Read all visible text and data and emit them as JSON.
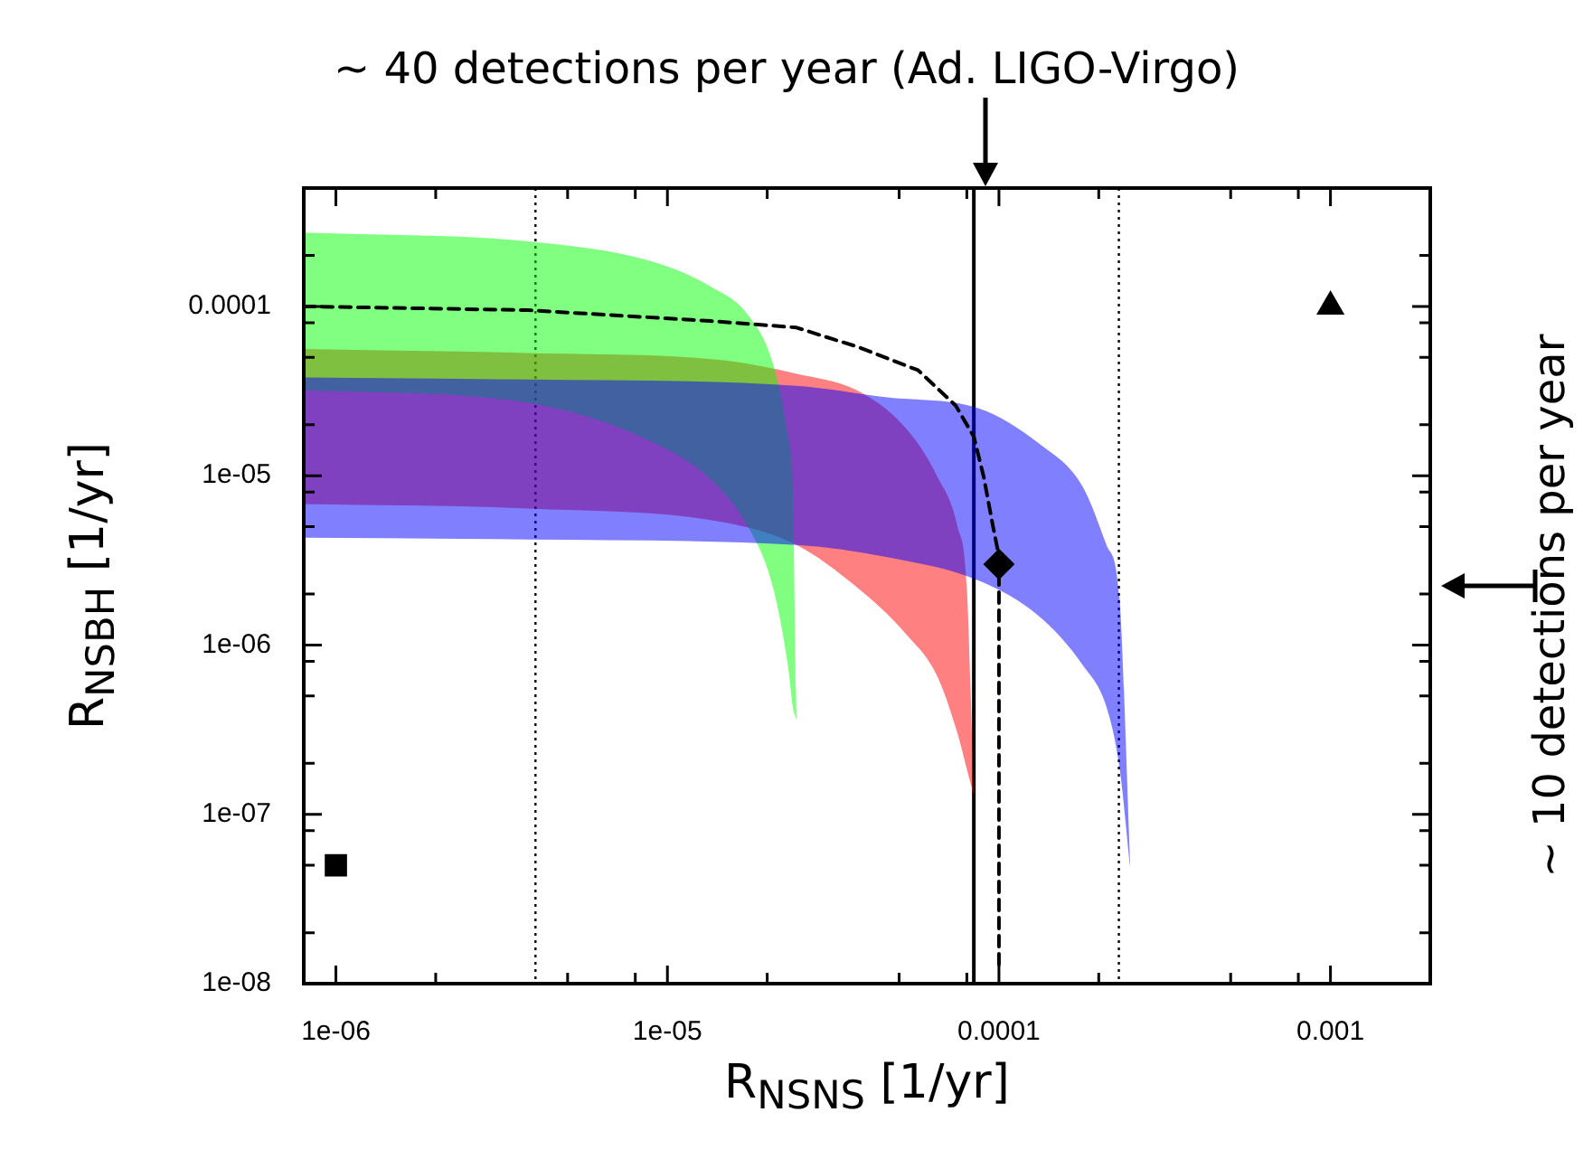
{
  "chart_data": {
    "type": "line",
    "xlabel": "R$_{NSNS}$ [1/yr]",
    "ylabel": "R$_{NSBH}$ [1/yr]",
    "log": "xy",
    "xlim": [
      8e-07,
      0.002
    ],
    "ylim": [
      1e-08,
      0.0005
    ],
    "xticks": [
      {
        "value": 1e-06,
        "label": "1e-06"
      },
      {
        "value": 2e-06,
        "label": null
      },
      {
        "value": 5e-06,
        "label": null
      },
      {
        "value": 8e-06,
        "label": null
      },
      {
        "value": 1e-05,
        "label": "1e-05"
      },
      {
        "value": 2e-05,
        "label": null
      },
      {
        "value": 5e-05,
        "label": null
      },
      {
        "value": 8e-05,
        "label": null
      },
      0.0001,
      {
        "value": 0.0002,
        "label": null
      },
      {
        "value": 0.0005,
        "label": null
      },
      {
        "value": 0.0008,
        "label": null
      },
      0.001
    ],
    "yticks": [
      {
        "value": 1e-08,
        "label": "1e-08"
      },
      {
        "value": 2e-08,
        "label": null
      },
      {
        "value": 5e-08,
        "label": null
      },
      {
        "value": 8e-08,
        "label": null
      },
      {
        "value": 1e-07,
        "label": "1e-07"
      },
      {
        "value": 2e-07,
        "label": null
      },
      {
        "value": 5e-07,
        "label": null
      },
      {
        "value": 8e-07,
        "label": null
      },
      {
        "value": 1e-06,
        "label": "1e-06"
      },
      {
        "value": 2e-06,
        "label": null
      },
      {
        "value": 5e-06,
        "label": null
      },
      {
        "value": 8e-06,
        "label": null
      },
      {
        "value": 1e-05,
        "label": "1e-05"
      },
      {
        "value": 2e-05,
        "label": null
      },
      {
        "value": 5e-05,
        "label": null
      },
      {
        "value": 8e-05,
        "label": null
      },
      0.0001,
      {
        "value": 0.0002,
        "label": null
      }
    ],
    "series": [
      {
        "color": "#ff8080",
        "x": [
          8e-07,
          3.8e-06,
          1.48e-05,
          2.45e-05,
          3.72e-05,
          5.25e-05,
          6.5e-05,
          7.5e-05,
          8e-05,
          8.4e-05
        ],
        "values": [
          null,
          null,
          null,
          null,
          null,
          null,
          null,
          null,
          null,
          null
        ],
        "upper": [
          5.6e-05,
          5.3e-05,
          4.8e-05,
          4e-05,
          3.2e-05,
          1.9e-05,
          1e-05,
          5e-06,
          2.2e-06,
          1.3e-07
        ],
        "lower": [
          6.8e-06,
          6.4e-06,
          5.3e-06,
          3.9e-06,
          2.2e-06,
          1.16e-06,
          6.6e-07,
          3e-07,
          1.85e-07,
          1.3e-07
        ]
      },
      {
        "color": "#80ff80",
        "x": [
          8e-07,
          3.8e-06,
          8.9e-06,
          1.35e-05,
          1.75e-05,
          2.08e-05,
          2.31e-05,
          2.39e-05,
          2.45e-05
        ],
        "values": [
          null,
          null,
          null,
          null,
          null,
          null,
          null,
          null,
          null
        ],
        "upper": [
          0.000273,
          0.000242,
          0.000185,
          0.000131,
          8.9e-05,
          4.6e-05,
          1.7e-05,
          8e-06,
          3.6e-07
        ],
        "lower": [
          3.2e-05,
          2.7e-05,
          1.6e-05,
          9.5e-06,
          5e-06,
          2.2e-06,
          7.5e-07,
          4.3e-07,
          3.6e-07
        ]
      },
      {
        "color": "#8080ff",
        "x": [
          8e-07,
          3.8e-06,
          2.45e-05,
          4.6e-05,
          8.7e-05,
          0.000132,
          0.000179,
          0.000211,
          0.000231,
          0.000249
        ],
        "values": [
          null,
          null,
          null,
          null,
          null,
          null,
          null,
          null,
          null,
          null
        ],
        "upper": [
          3.8e-05,
          3.7e-05,
          3.4e-05,
          2.9e-05,
          2.5e-05,
          1.55e-05,
          8.6e-06,
          3.9e-06,
          1.9e-06,
          4.8e-08
        ],
        "lower": [
          4.3e-06,
          4.2e-06,
          3.9e-06,
          3.3e-06,
          2.4e-06,
          1.48e-06,
          7.6e-07,
          4.3e-07,
          1.9e-07,
          4.8e-08
        ]
      },
      {
        "color": "#000000",
        "line_style": "dashed",
        "marker": "none",
        "x": [
          8e-07,
          3.8e-06,
          1.35e-05,
          2.45e-05,
          3.16e-05,
          3.72e-05,
          5.7e-05,
          7.4e-05,
          8.4e-05,
          9e-05,
          9.6e-05,
          9.9e-05,
          0.0001,
          0.0001
        ],
        "values": [
          0.0001,
          9.5e-05,
          8.2e-05,
          7.5e-05,
          6.4e-05,
          5.8e-05,
          4.2e-05,
          2.6e-05,
          1.7e-05,
          9.8e-06,
          5e-06,
          3.7e-06,
          3e-06,
          1.2e-08
        ]
      },
      {
        "type": "scatter",
        "color": "#000000",
        "marker": "square",
        "x": [
          1e-06
        ],
        "values": [
          5e-08
        ]
      },
      {
        "type": "scatter",
        "color": "#000000",
        "marker": "diamond",
        "x": [
          0.0001
        ],
        "values": [
          3e-06
        ]
      },
      {
        "type": "scatter",
        "color": "#000000",
        "marker": "triangle",
        "x": [
          0.001
        ],
        "values": [
          0.0001
        ]
      }
    ],
    "ref_lines": [
      {
        "axis": "x",
        "value": 4e-06,
        "line_style": "dotted",
        "color": "#000000"
      },
      {
        "axis": "x",
        "value": 8.4e-05,
        "line_style": "solid",
        "color": "#000000"
      },
      {
        "axis": "x",
        "value": 0.00023,
        "line_style": "dotted",
        "color": "#000000"
      }
    ],
    "annotations": [
      "~ 40 detections per year (Ad. LIGO-Virgo)",
      "~ 10 detections per year"
    ],
    "legend": false,
    "grid": false
  }
}
